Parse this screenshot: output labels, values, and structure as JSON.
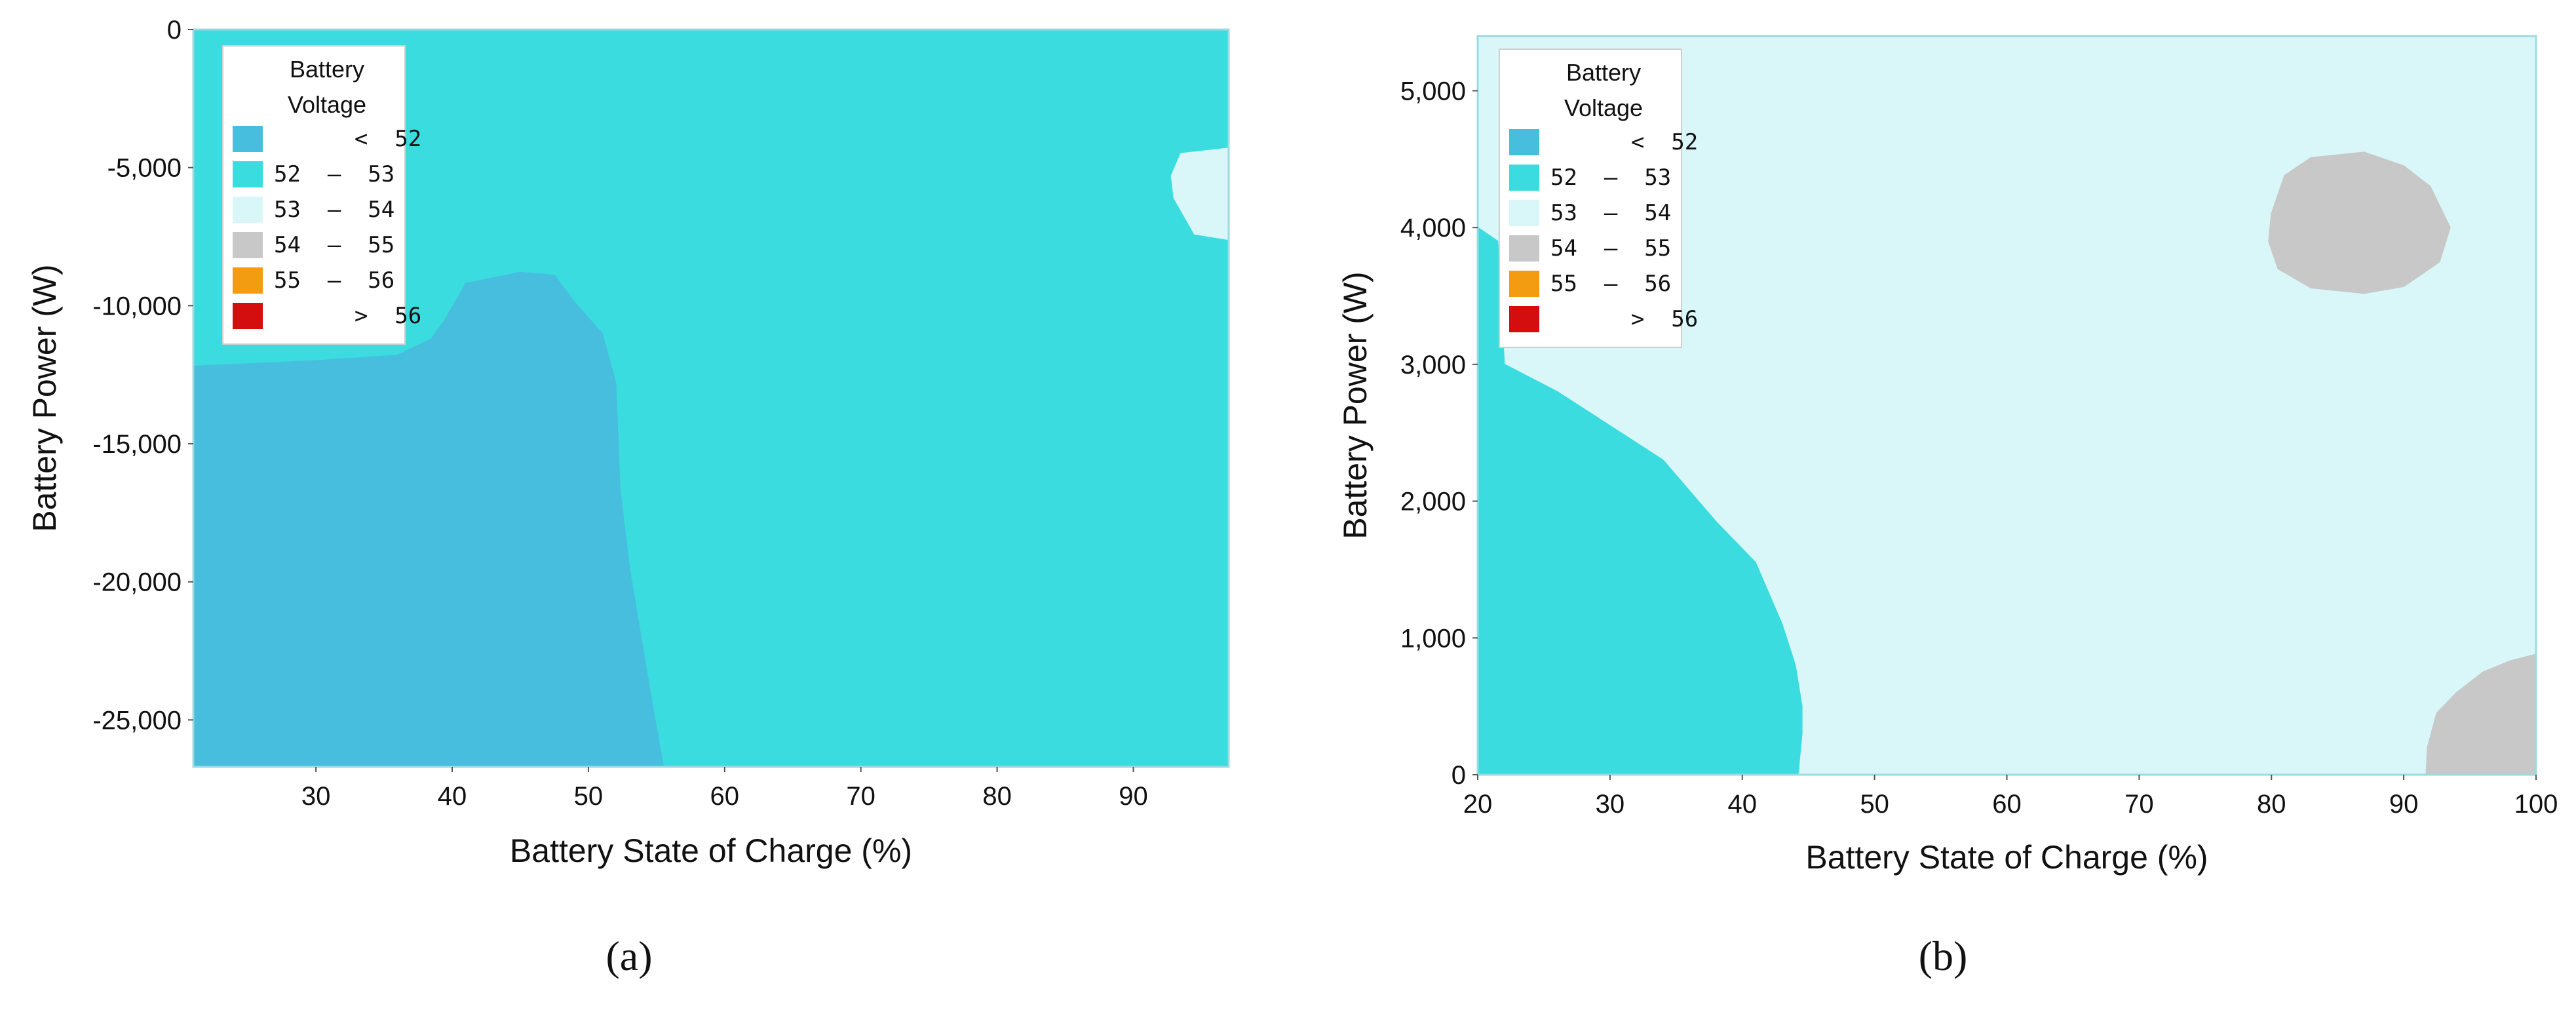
{
  "chart_data": [
    {
      "type": "heatmap",
      "panel_label": "(a)",
      "xlabel": "Battery State of Charge (%)",
      "ylabel": "Battery Power (W)",
      "xlim": [
        21,
        97
      ],
      "ylim": [
        -26700,
        0
      ],
      "x_ticks": [
        30,
        40,
        50,
        60,
        70,
        80,
        90
      ],
      "x_tick_labels": [
        "30",
        "40",
        "50",
        "60",
        "70",
        "80",
        "90"
      ],
      "y_ticks": [
        0,
        -5000,
        -10000,
        -15000,
        -20000,
        -25000
      ],
      "y_tick_labels": [
        "0",
        "-5,000",
        "-10,000",
        "-15,000",
        "-20,000",
        "-25,000"
      ],
      "grid": false,
      "legend_placement": "top-left",
      "background_band": "52 – 53",
      "regions": [
        {
          "band": "< 52",
          "polygon": [
            [
              21,
              -12200
            ],
            [
              30,
              -12000
            ],
            [
              36,
              -11800
            ],
            [
              38.5,
              -11200
            ],
            [
              39.5,
              -10500
            ],
            [
              41,
              -9200
            ],
            [
              45,
              -8800
            ],
            [
              47.5,
              -8900
            ],
            [
              49,
              -9900
            ],
            [
              51,
              -11000
            ],
            [
              52,
              -12800
            ],
            [
              52.3,
              -16600
            ],
            [
              53,
              -19500
            ],
            [
              54.7,
              -24500
            ],
            [
              55.5,
              -26700
            ],
            [
              21,
              -26700
            ]
          ]
        },
        {
          "band": "53 – 54",
          "polygon": [
            [
              97,
              -4300
            ],
            [
              93.5,
              -4500
            ],
            [
              92.8,
              -5300
            ],
            [
              93,
              -6100
            ],
            [
              94.5,
              -7400
            ],
            [
              97,
              -7600
            ]
          ]
        }
      ]
    },
    {
      "type": "heatmap",
      "panel_label": "(b)",
      "xlabel": "Battery State of Charge (%)",
      "ylabel": "Battery Power (W)",
      "xlim": [
        20,
        100
      ],
      "ylim": [
        0,
        5400
      ],
      "x_ticks": [
        20,
        30,
        40,
        50,
        60,
        70,
        80,
        90,
        100
      ],
      "x_tick_labels": [
        "20",
        "30",
        "40",
        "50",
        "60",
        "70",
        "80",
        "90",
        "100"
      ],
      "y_ticks": [
        0,
        1000,
        2000,
        3000,
        4000,
        5000
      ],
      "y_tick_labels": [
        "0",
        "1,000",
        "2,000",
        "3,000",
        "4,000",
        "5,000"
      ],
      "grid": false,
      "legend_placement": "top-left",
      "background_band": "53 – 54",
      "regions": [
        {
          "band": "52 – 53",
          "polygon": [
            [
              20,
              4000
            ],
            [
              21.5,
              3900
            ],
            [
              22,
              3000
            ],
            [
              26,
              2800
            ],
            [
              30,
              2550
            ],
            [
              34,
              2300
            ],
            [
              38,
              1850
            ],
            [
              41,
              1550
            ],
            [
              43,
              1100
            ],
            [
              44,
              800
            ],
            [
              44.5,
              500
            ],
            [
              44.5,
              300
            ],
            [
              44.2,
              0
            ],
            [
              20,
              0
            ]
          ]
        },
        {
          "band": "54 – 55",
          "polygon": [
            [
              80,
              4100
            ],
            [
              81,
              4380
            ],
            [
              83,
              4510
            ],
            [
              87,
              4550
            ],
            [
              90,
              4450
            ],
            [
              92,
              4300
            ],
            [
              93.5,
              4000
            ],
            [
              92.7,
              3750
            ],
            [
              90,
              3570
            ],
            [
              87,
              3520
            ],
            [
              83,
              3560
            ],
            [
              80.5,
              3700
            ],
            [
              79.8,
              3900
            ]
          ]
        },
        {
          "band": "54 – 55",
          "polygon": [
            [
              91.7,
              0
            ],
            [
              91.8,
              200
            ],
            [
              92.5,
              450
            ],
            [
              94,
              600
            ],
            [
              96,
              750
            ],
            [
              98,
              830
            ],
            [
              100,
              880
            ],
            [
              100,
              0
            ]
          ]
        }
      ]
    }
  ],
  "legend": {
    "title_line1": "Battery",
    "title_line2": "Voltage",
    "items": [
      {
        "label": "      <  52",
        "color": "#47BEDD"
      },
      {
        "label": "52  –  53",
        "color": "#3BDCDF"
      },
      {
        "label": "53  –  54",
        "color": "#D9F7F8"
      },
      {
        "label": "54  –  55",
        "color": "#C8C8C8"
      },
      {
        "label": "55  –  56",
        "color": "#F39C12"
      },
      {
        "label": "      >  56",
        "color": "#D40E0E"
      }
    ]
  },
  "colors": {
    "< 52": "#47BEDD",
    "52 – 53": "#3BDCDF",
    "53 – 54": "#D9F7F8",
    "54 – 55": "#C8C8C8",
    "55 – 56": "#F39C12",
    "> 56": "#D40E0E",
    "axis": "#9ed8e0"
  }
}
